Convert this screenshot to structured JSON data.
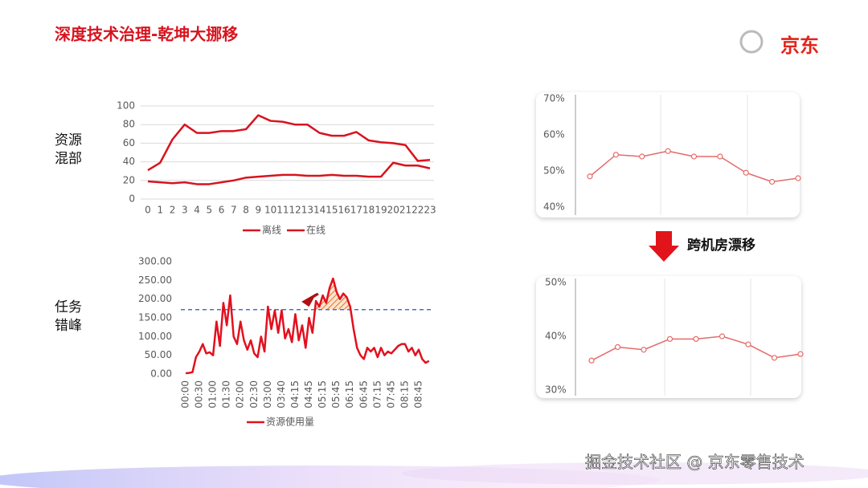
{
  "header": {
    "title": "深度技术治理-乾坤大挪移",
    "logo": "京东"
  },
  "sections": [
    [
      "资源",
      "混部"
    ],
    [
      "任务",
      "错峰"
    ]
  ],
  "arrow_label": "跨机房漂移",
  "watermark": "掘金技术社区 @ 京东零售技术",
  "chart_data": [
    {
      "type": "line",
      "categories": [
        "0",
        "1",
        "2",
        "3",
        "4",
        "5",
        "6",
        "7",
        "8",
        "9",
        "10",
        "11",
        "12",
        "13",
        "14",
        "15",
        "16",
        "17",
        "18",
        "19",
        "20",
        "21",
        "22",
        "23"
      ],
      "series": [
        {
          "name": "离线",
          "color": "#d7141f",
          "values": [
            31,
            39,
            64,
            80,
            71,
            71,
            73,
            73,
            75,
            90,
            84,
            83,
            80,
            80,
            71,
            68,
            68,
            72,
            63,
            61,
            60,
            58,
            41,
            42
          ]
        },
        {
          "name": "在线",
          "color": "#d7141f",
          "values": [
            19,
            18,
            17,
            18,
            16,
            16,
            18,
            20,
            23,
            24,
            25,
            26,
            26,
            25,
            25,
            26,
            25,
            25,
            24,
            24,
            39,
            36,
            36,
            33
          ]
        }
      ],
      "ylim": [
        0,
        100
      ],
      "yticks": [
        0,
        20,
        40,
        60,
        80,
        100
      ],
      "grid": true
    },
    {
      "type": "line",
      "categories": [
        "00:00",
        null,
        null,
        null,
        "00:30",
        null,
        null,
        null,
        "01:00",
        null,
        null,
        null,
        "01:30",
        null,
        null,
        null,
        "02:00",
        null,
        null,
        null,
        "02:30",
        null,
        null,
        null,
        "03:00",
        null,
        null,
        null,
        "03:40",
        null,
        null,
        null,
        "04:15",
        null,
        null,
        null,
        "04:45",
        null,
        null,
        null,
        "05:15",
        null,
        null,
        null,
        "05:45",
        null,
        null,
        null,
        "06:15",
        null,
        null,
        null,
        "06:45",
        null,
        null,
        null,
        "07:15",
        null,
        null,
        null,
        "07:45",
        null,
        null,
        null,
        "08:15",
        null,
        null,
        null,
        "08:45",
        null,
        null,
        null
      ],
      "series": [
        {
          "name": "资源使用量",
          "color": "#e3101e",
          "values": [
            2,
            3,
            5,
            45,
            60,
            80,
            55,
            58,
            50,
            140,
            75,
            190,
            130,
            210,
            100,
            80,
            140,
            90,
            65,
            90,
            55,
            45,
            100,
            60,
            180,
            120,
            170,
            110,
            170,
            95,
            120,
            85,
            160,
            90,
            130,
            70,
            150,
            110,
            195,
            180,
            210,
            190,
            230,
            255,
            220,
            200,
            215,
            205,
            180,
            120,
            70,
            50,
            40,
            70,
            60,
            70,
            45,
            70,
            50,
            60,
            55,
            65,
            75,
            80,
            80,
            60,
            70,
            50,
            65,
            40,
            30,
            35
          ]
        }
      ],
      "ylim": [
        0,
        300
      ],
      "yticks": [
        {
          "value": 0,
          "label": "0.00"
        },
        {
          "value": 50,
          "label": "50.00"
        },
        {
          "value": 100,
          "label": "100.00"
        },
        {
          "value": 150,
          "label": "150.00"
        },
        {
          "value": 200,
          "label": "200.00"
        },
        {
          "value": 250,
          "label": "250.00"
        },
        {
          "value": 300,
          "label": "300.00"
        }
      ],
      "reference_line": 172,
      "grid": false
    },
    {
      "type": "line",
      "categories": [
        null,
        null,
        null,
        null,
        null,
        null,
        null,
        null,
        null
      ],
      "series": [
        {
          "color": "#e56b6b",
          "values": [
            48.5,
            54.5,
            54,
            55.5,
            54,
            54,
            49.5,
            47,
            48
          ]
        }
      ],
      "ylim": [
        40,
        70
      ],
      "yticks": [
        {
          "value": 40,
          "label": "40%"
        },
        {
          "value": 50,
          "label": "50%"
        },
        {
          "value": 60,
          "label": "60%"
        },
        {
          "value": 70,
          "label": "70%"
        }
      ],
      "markers": true,
      "grid": false
    },
    {
      "type": "line",
      "categories": [
        null,
        null,
        null,
        null,
        null,
        null,
        null,
        null,
        null
      ],
      "series": [
        {
          "color": "#e56b6b",
          "values": [
            35.5,
            38,
            37.5,
            39.5,
            39.5,
            40,
            38.5,
            36,
            36.7
          ]
        }
      ],
      "ylim": [
        30,
        50
      ],
      "yticks": [
        {
          "value": 30,
          "label": "30%"
        },
        {
          "value": 40,
          "label": "40%"
        },
        {
          "value": 50,
          "label": "50%"
        }
      ],
      "markers": true,
      "grid": false
    }
  ]
}
